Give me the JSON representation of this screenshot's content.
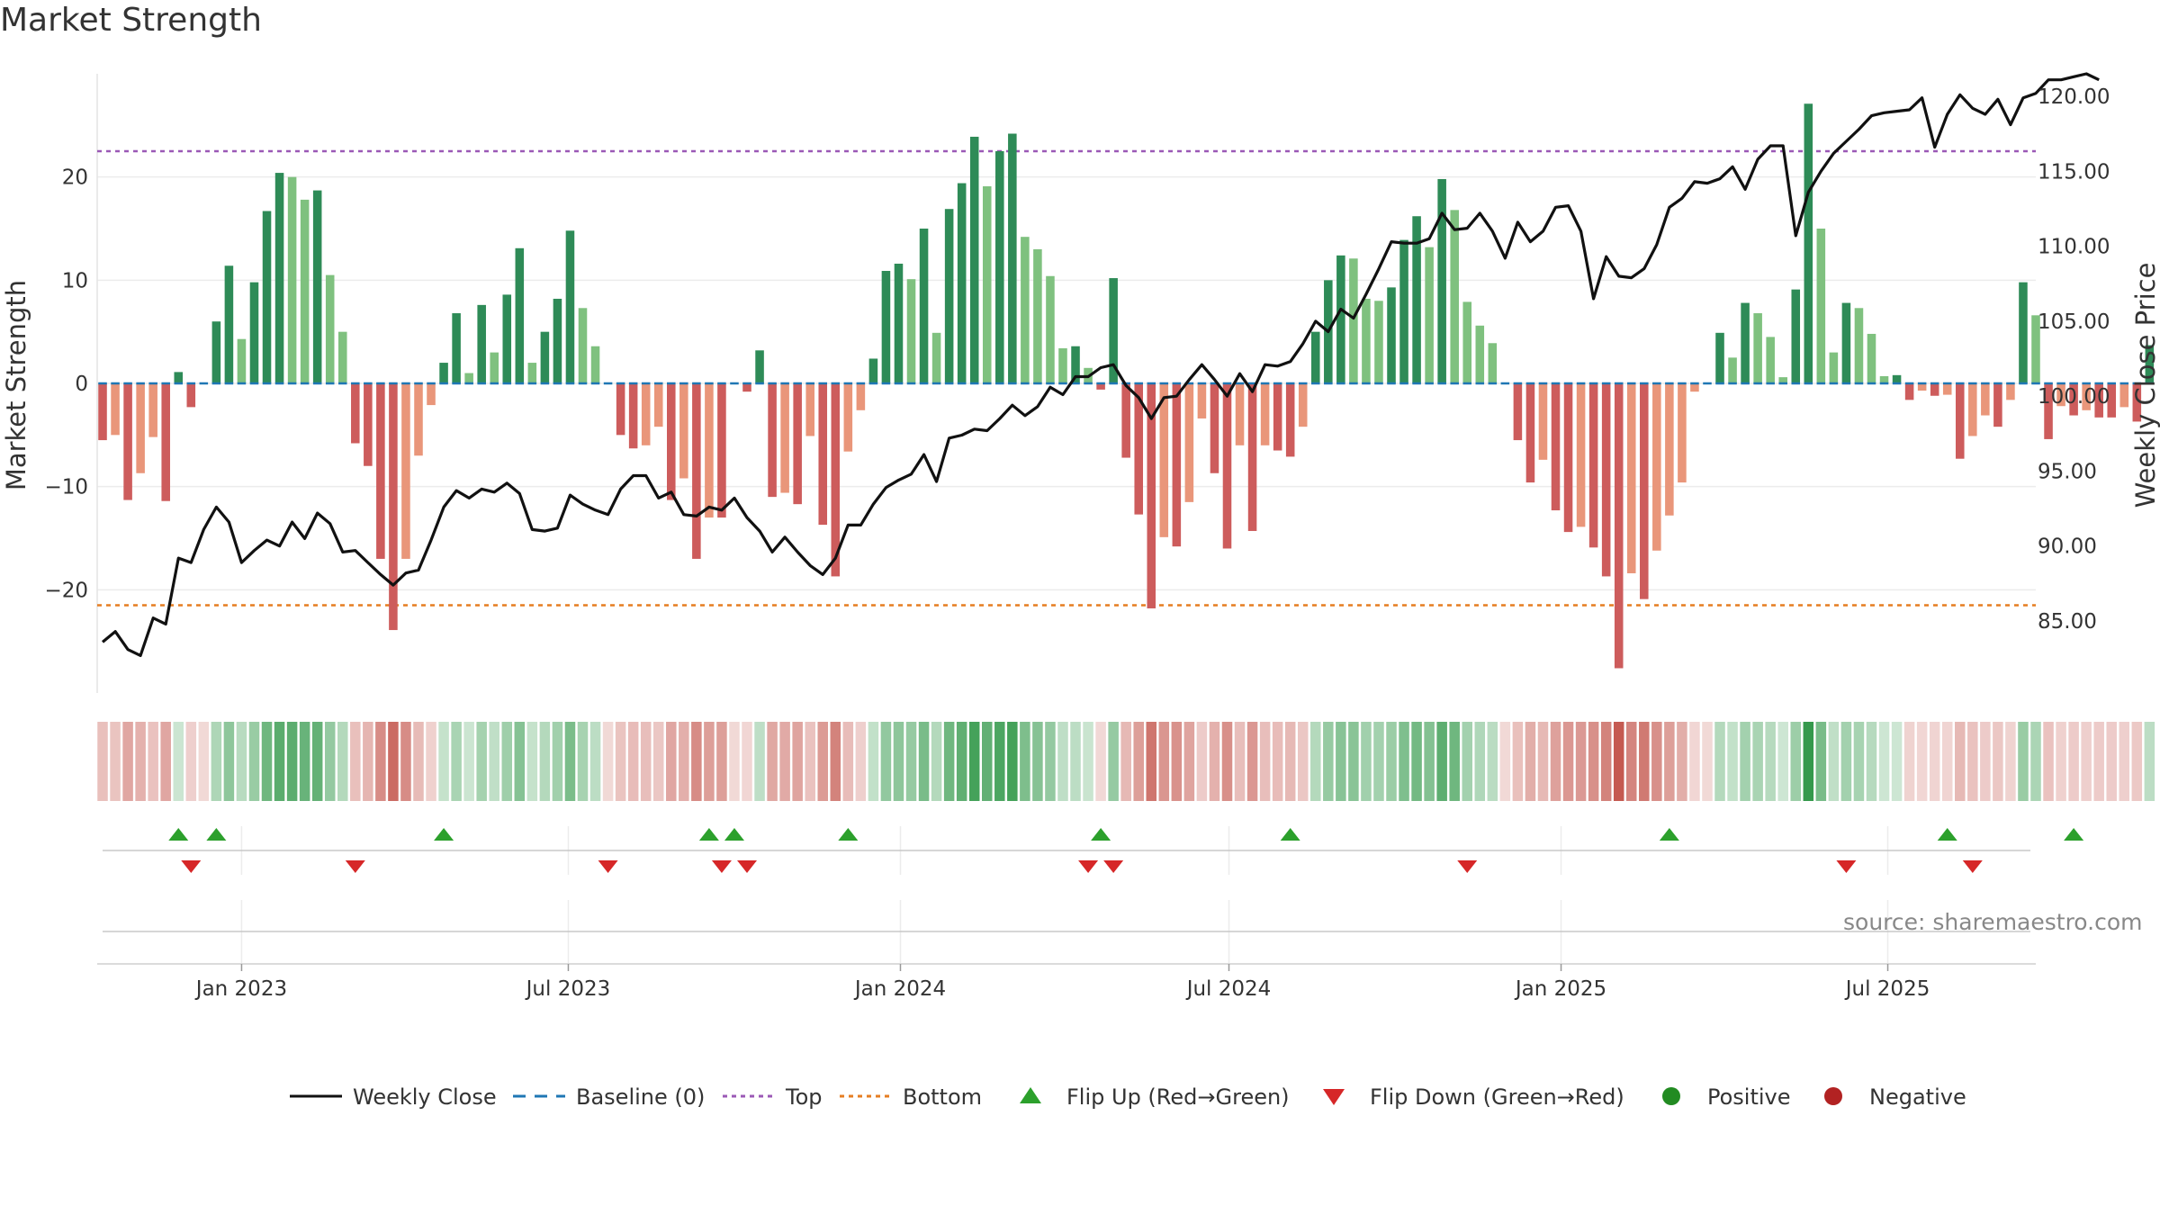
{
  "title": "Market Strength",
  "source": "source: sharemaestro.com",
  "colors": {
    "green_dark": "#2e8b57",
    "green_light": "#7fc17f",
    "red_dark": "#cd5c5c",
    "red_light": "#e9967a",
    "price_line": "#111111",
    "baseline": "#1f77b4",
    "top_line": "#9b59b6",
    "bottom_line": "#e67e22",
    "flip_up": "#2ca02c",
    "flip_down": "#d62728",
    "positive": "#228b22",
    "negative": "#b22222"
  },
  "chart_data": {
    "type": "bar",
    "title": "Market Strength",
    "ylabel_left": "Market Strength",
    "ylabel_right": "Weekly Close Price",
    "x_start": "2022-10-16",
    "x_interval": "weekly",
    "x_range": [
      "2022-10-13",
      "2025-09-21"
    ],
    "ylim_left": [
      -30,
      30
    ],
    "ylim_right": [
      80.2,
      121.5
    ],
    "y_ticks_left": [
      "20",
      "10",
      "0",
      "−10",
      "−20"
    ],
    "y_ticks_left_values": [
      20,
      10,
      0,
      -10,
      -20
    ],
    "y_ticks_right": [
      "120.00",
      "115.00",
      "110.00",
      "105.00",
      "100.00",
      "95.00",
      "90.00",
      "85.00"
    ],
    "y_ticks_right_values": [
      120,
      115,
      110,
      105,
      100,
      95,
      90,
      85
    ],
    "x_ticks": [
      {
        "date": "2023-01-01",
        "label": "Jan 2023"
      },
      {
        "date": "2023-07-01",
        "label": "Jul 2023"
      },
      {
        "date": "2024-01-01",
        "label": "Jan 2024"
      },
      {
        "date": "2024-07-01",
        "label": "Jul 2024"
      },
      {
        "date": "2025-01-01",
        "label": "Jan 2025"
      },
      {
        "date": "2025-07-01",
        "label": "Jul 2025"
      }
    ],
    "top_level": 22.5,
    "bottom_level": -21.5,
    "grid": true,
    "legend_position": "bottom",
    "strength": [
      -5.5,
      -5,
      -11.3,
      -8.7,
      -5.2,
      -11.4,
      1.1,
      -2.3,
      0,
      6,
      11.4,
      4.3,
      9.8,
      16.7,
      20.4,
      20,
      17.8,
      18.7,
      10.5,
      5,
      -5.8,
      -8,
      -17,
      -23.9,
      -17,
      -7,
      -2.1,
      2,
      6.8,
      1,
      7.6,
      3,
      8.6,
      13.1,
      2,
      5,
      8.2,
      14.8,
      7.3,
      3.6,
      0,
      -5,
      -6.3,
      -6,
      -4.2,
      -11.3,
      -9.2,
      -17,
      -13,
      -13,
      0,
      -0.8,
      3.2,
      -11,
      -10.6,
      -11.7,
      -5.1,
      -13.7,
      -18.7,
      -6.6,
      -2.6,
      2.4,
      10.9,
      11.6,
      10.1,
      15,
      4.9,
      16.9,
      19.4,
      23.9,
      19.1,
      22.5,
      24.2,
      14.2,
      13,
      10.4,
      3.4,
      3.6,
      1.5,
      -0.6,
      10.2,
      -7.2,
      -12.7,
      -21.8,
      -14.9,
      -15.8,
      -11.5,
      -3.4,
      -8.7,
      -16,
      -6,
      -14.3,
      -6,
      -6.5,
      -7.1,
      -4.2,
      5,
      10,
      12.4,
      12.1,
      8.2,
      8,
      9.3,
      13.9,
      16.2,
      13.2,
      19.8,
      16.8,
      7.9,
      5.6,
      3.9,
      0,
      -5.5,
      -9.6,
      -7.4,
      -12.3,
      -14.4,
      -13.9,
      -15.9,
      -18.7,
      -27.6,
      -18.4,
      -20.9,
      -16.2,
      -12.8,
      -9.6,
      -0.8,
      0,
      4.9,
      2.5,
      7.8,
      6.8,
      4.5,
      0.6,
      9.1,
      27.1,
      15,
      3,
      7.8,
      7.3,
      4.8,
      0.7,
      0.8,
      -1.6,
      -0.7,
      -1.2,
      -1.1,
      -7.3,
      -5.1,
      -3.1,
      -4.2,
      -1.6,
      9.8,
      6.6,
      -5.4,
      -2.2,
      -3.1,
      -2.6,
      -3.3,
      -3.3,
      -2.3,
      -3.7,
      3.7
    ],
    "weekly_close": [
      83.6,
      84.3,
      83.1,
      82.7,
      85.2,
      84.8,
      89.2,
      88.9,
      91.1,
      92.6,
      91.6,
      88.9,
      89.7,
      90.4,
      90,
      91.6,
      90.5,
      92.2,
      91.5,
      89.6,
      89.7,
      88.9,
      88.1,
      87.4,
      88.2,
      88.4,
      90.4,
      92.6,
      93.7,
      93.2,
      93.8,
      93.6,
      94.2,
      93.5,
      91.1,
      91,
      91.2,
      93.4,
      92.8,
      92.4,
      92.1,
      93.8,
      94.7,
      94.7,
      93.2,
      93.6,
      92.1,
      92,
      92.6,
      92.4,
      93.2,
      91.9,
      91,
      89.6,
      90.6,
      89.6,
      88.7,
      88.1,
      89.2,
      91.4,
      91.4,
      92.8,
      93.9,
      94.4,
      94.8,
      96.1,
      94.3,
      97.2,
      97.4,
      97.8,
      97.7,
      98.5,
      99.4,
      98.7,
      99.3,
      100.6,
      100.1,
      101.3,
      101.3,
      101.9,
      102.1,
      100.7,
      99.9,
      98.5,
      99.9,
      100,
      101.1,
      102.1,
      101.1,
      100,
      101.5,
      100.3,
      102.1,
      102,
      102.3,
      103.5,
      105,
      104.3,
      105.8,
      105.2,
      106.8,
      108.5,
      110.3,
      110.2,
      110.2,
      110.5,
      112.2,
      111.1,
      111.2,
      112.2,
      111,
      109.2,
      111.6,
      110.3,
      111,
      112.6,
      112.7,
      111,
      106.5,
      109.3,
      108,
      107.9,
      108.5,
      110.1,
      112.6,
      113.2,
      114.3,
      114.2,
      114.5,
      115.3,
      113.8,
      115.8,
      116.7,
      116.7,
      110.7,
      113.6,
      115,
      116.2,
      117,
      117.8,
      118.7,
      118.9,
      119,
      119.1,
      119.9,
      116.6,
      118.8,
      120.1,
      119.2,
      118.8,
      119.8,
      118.1,
      119.9,
      120.2,
      121.1,
      121.1,
      121.3,
      121.5,
      121.1
    ],
    "flip_up_weeks": [
      6,
      9,
      27,
      48,
      50,
      59,
      79,
      94,
      124,
      146,
      156
    ],
    "flip_down_weeks": [
      7,
      20,
      40,
      49,
      51,
      78,
      80,
      108,
      138,
      148
    ],
    "legend": [
      "Weekly Close",
      "Baseline (0)",
      "Top",
      "Bottom",
      "Flip Up (Red→Green)",
      "Flip Down (Green→Red)",
      "Positive",
      "Negative"
    ]
  }
}
